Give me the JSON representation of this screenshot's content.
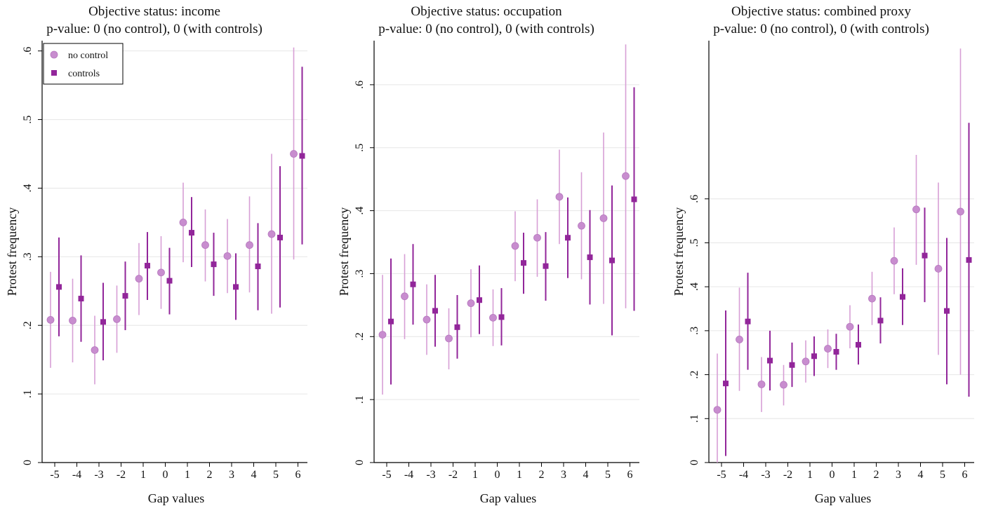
{
  "colors": {
    "no_control": "#d79fd6",
    "no_control_marker": "#c88dcf",
    "controls": "#92269a",
    "grid": "#e6e6e6",
    "axis": "#000000"
  },
  "chart_data": [
    {
      "type": "scatter",
      "title": "Objective status: income",
      "subtitle": "p-value: 0 (no control), 0 (with controls)",
      "xlabel": "Gap values",
      "ylabel": "Protest frequency",
      "categories": [
        "-5",
        "-4",
        "-3",
        "-2",
        "1",
        "0",
        "1",
        "2",
        "3",
        "4",
        "5",
        "6"
      ],
      "ylim": [
        0,
        0.615
      ],
      "yticks": [
        0,
        0.1,
        0.2,
        0.3,
        0.4,
        0.5,
        0.6
      ],
      "ytick_labels": [
        "0",
        ".1",
        ".2",
        ".3",
        ".4",
        ".5",
        ".6"
      ],
      "grid": true,
      "legend": {
        "show": true,
        "placement": "top-left",
        "entries": [
          "no control",
          "controls"
        ]
      },
      "series": [
        {
          "name": "no control",
          "marker": "circle",
          "values": [
            0.208,
            0.207,
            0.164,
            0.209,
            0.268,
            0.277,
            0.35,
            0.317,
            0.301,
            0.317,
            0.333,
            0.45
          ],
          "ci_low": [
            0.138,
            0.146,
            0.114,
            0.16,
            0.215,
            0.224,
            0.292,
            0.264,
            0.247,
            0.248,
            0.217,
            0.296
          ],
          "ci_high": [
            0.278,
            0.268,
            0.214,
            0.258,
            0.32,
            0.33,
            0.408,
            0.369,
            0.355,
            0.388,
            0.45,
            0.605
          ]
        },
        {
          "name": "controls",
          "marker": "square",
          "values": [
            0.256,
            0.239,
            0.205,
            0.243,
            0.287,
            0.265,
            0.335,
            0.289,
            0.256,
            0.286,
            0.328,
            0.447
          ],
          "ci_low": [
            0.184,
            0.176,
            0.149,
            0.193,
            0.237,
            0.216,
            0.285,
            0.243,
            0.208,
            0.222,
            0.226,
            0.318
          ],
          "ci_high": [
            0.328,
            0.302,
            0.262,
            0.293,
            0.336,
            0.313,
            0.387,
            0.335,
            0.305,
            0.349,
            0.432,
            0.577
          ]
        }
      ]
    },
    {
      "type": "scatter",
      "title": "Objective status: occupation",
      "subtitle": "p-value: 0 (no control), 0 (with controls)",
      "xlabel": "Gap values",
      "ylabel": "Protest frequency",
      "categories": [
        "-5",
        "-4",
        "-3",
        "-2",
        "1",
        "0",
        "1",
        "2",
        "3",
        "4",
        "5",
        "6"
      ],
      "ylim": [
        0,
        0.67
      ],
      "yticks": [
        0,
        0.1,
        0.2,
        0.3,
        0.4,
        0.5,
        0.6
      ],
      "ytick_labels": [
        "0",
        ".1",
        ".2",
        ".3",
        ".4",
        ".5",
        ".6"
      ],
      "grid": true,
      "legend": {
        "show": false
      },
      "series": [
        {
          "name": "no control",
          "marker": "circle",
          "values": [
            0.203,
            0.264,
            0.227,
            0.197,
            0.253,
            0.23,
            0.344,
            0.357,
            0.422,
            0.376,
            0.388,
            0.455
          ],
          "ci_low": [
            0.108,
            0.196,
            0.171,
            0.148,
            0.199,
            0.185,
            0.288,
            0.295,
            0.347,
            0.291,
            0.252,
            0.245
          ],
          "ci_high": [
            0.298,
            0.331,
            0.283,
            0.245,
            0.307,
            0.275,
            0.399,
            0.418,
            0.497,
            0.461,
            0.524,
            0.664
          ]
        },
        {
          "name": "controls",
          "marker": "square",
          "values": [
            0.224,
            0.283,
            0.241,
            0.215,
            0.258,
            0.231,
            0.317,
            0.312,
            0.357,
            0.326,
            0.321,
            0.418
          ],
          "ci_low": [
            0.124,
            0.219,
            0.184,
            0.165,
            0.204,
            0.186,
            0.268,
            0.257,
            0.293,
            0.251,
            0.202,
            0.241
          ],
          "ci_high": [
            0.324,
            0.347,
            0.298,
            0.266,
            0.313,
            0.277,
            0.365,
            0.366,
            0.421,
            0.401,
            0.44,
            0.596
          ]
        }
      ]
    },
    {
      "type": "scatter",
      "title": "Objective status: combined proxy",
      "subtitle": "p-value: 0 (no control), 0 (with controls)",
      "xlabel": "Gap values",
      "ylabel": "Protest frequency",
      "categories": [
        "-5",
        "-4",
        "-3",
        "-2",
        "1",
        "0",
        "1",
        "2",
        "3",
        "4",
        "5",
        "6"
      ],
      "ylim": [
        0,
        0.96
      ],
      "yticks": [
        0,
        0.1,
        0.2,
        0.3,
        0.4,
        0.5,
        0.6
      ],
      "ytick_labels": [
        "0",
        ".1",
        ".2",
        ".3",
        ".4",
        ".5",
        ".6"
      ],
      "grid": true,
      "legend": {
        "show": false
      },
      "series": [
        {
          "name": "no control",
          "marker": "circle",
          "values": [
            0.12,
            0.28,
            0.178,
            0.177,
            0.23,
            0.259,
            0.309,
            0.373,
            0.459,
            0.576,
            0.441,
            0.571
          ],
          "ci_low": [
            -0.005,
            0.163,
            0.115,
            0.13,
            0.182,
            0.215,
            0.26,
            0.313,
            0.383,
            0.45,
            0.245,
            0.2
          ],
          "ci_high": [
            0.248,
            0.398,
            0.24,
            0.222,
            0.278,
            0.303,
            0.358,
            0.434,
            0.535,
            0.7,
            0.637,
            0.942
          ]
        },
        {
          "name": "controls",
          "marker": "square",
          "values": [
            0.18,
            0.321,
            0.232,
            0.222,
            0.242,
            0.252,
            0.268,
            0.323,
            0.377,
            0.471,
            0.345,
            0.461
          ],
          "ci_low": [
            0.015,
            0.211,
            0.164,
            0.172,
            0.197,
            0.211,
            0.223,
            0.271,
            0.313,
            0.365,
            0.178,
            0.15
          ],
          "ci_high": [
            0.346,
            0.432,
            0.3,
            0.273,
            0.287,
            0.293,
            0.314,
            0.376,
            0.442,
            0.58,
            0.511,
            0.773
          ]
        }
      ]
    }
  ]
}
